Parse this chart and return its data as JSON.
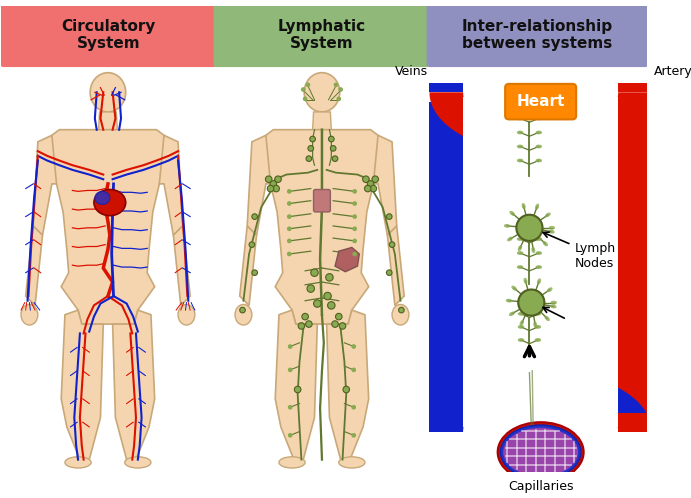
{
  "bg_color": "#ffffff",
  "panel1_title": "Circulatory\nSystem",
  "panel2_title": "Lymphatic\nSystem",
  "panel3_title": "Inter-relationship\nbetween systems",
  "panel1_header_color": "#f07070",
  "panel2_header_color": "#90b878",
  "panel3_header_color": "#9090c0",
  "header_text_color": "#111111",
  "body_skin_color": "#f5d5b0",
  "body_outline_color": "#c8a878",
  "artery_color": "#dd1100",
  "vein_color": "#1122cc",
  "lymph_vessel_color": "#607830",
  "lymph_node_color": "#88aa50",
  "heart_box_color": "#ff8800",
  "heart_text_color": "#ffffff",
  "arrow_color": "#000000",
  "label_veins": "Veins",
  "label_artery": "Artery",
  "label_heart": "Heart",
  "label_lymph_nodes": "Lymph\nNodes",
  "label_capillaries": "Capillaries",
  "title_fontsize": 11,
  "label_fontsize": 9
}
